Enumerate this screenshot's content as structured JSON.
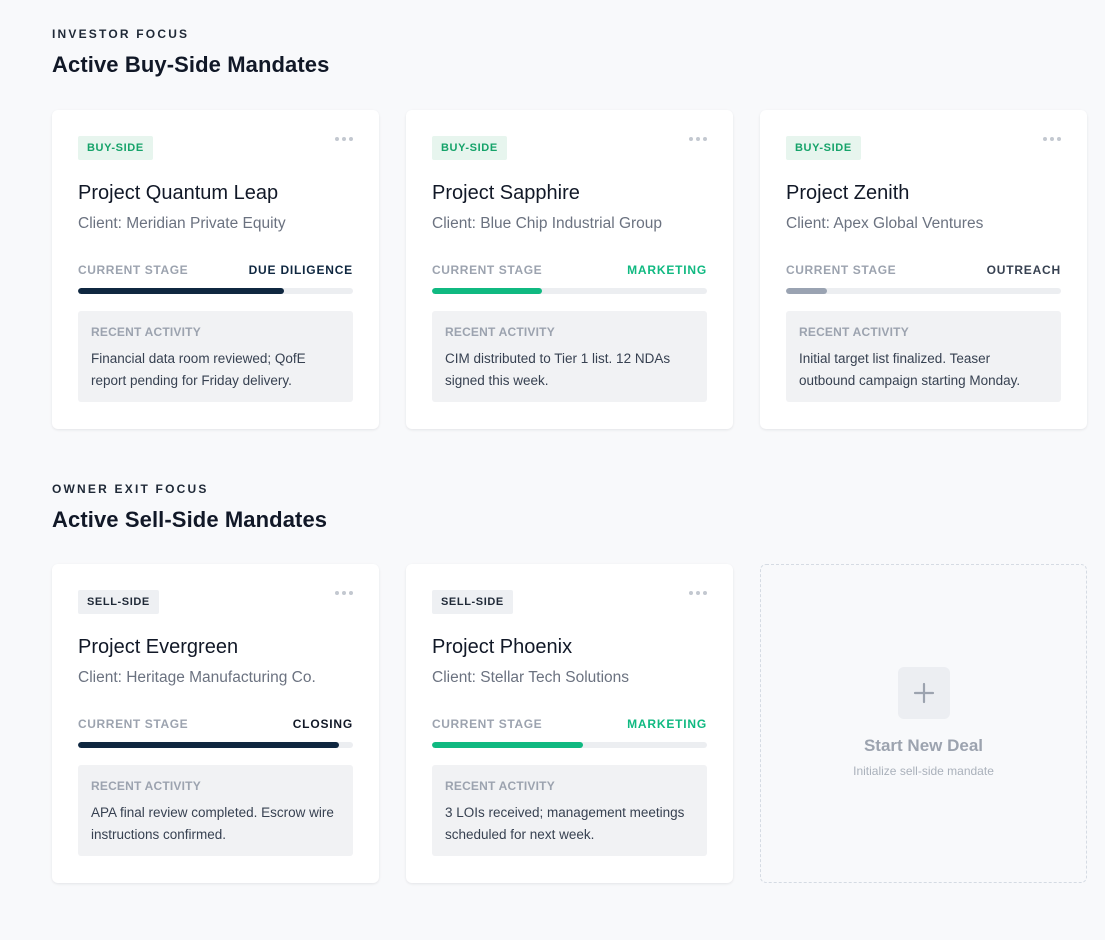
{
  "buy_section": {
    "eyebrow": "INVESTOR FOCUS",
    "title": "Active Buy-Side Mandates",
    "cards": [
      {
        "badge": "BUY-SIDE",
        "title": "Project Quantum Leap",
        "client": "Client: Meridian Private Equity",
        "stage_label": "CURRENT STAGE",
        "stage": "DUE DILIGENCE",
        "stage_color": "#0f2740",
        "progress": 0.75,
        "activity_label": "RECENT ACTIVITY",
        "activity": "Financial data room reviewed; QofE report pending for Friday delivery."
      },
      {
        "badge": "BUY-SIDE",
        "title": "Project Sapphire",
        "client": "Client: Blue Chip Industrial Group",
        "stage_label": "CURRENT STAGE",
        "stage": "MARKETING",
        "stage_color": "#10b981",
        "progress": 0.4,
        "activity_label": "RECENT ACTIVITY",
        "activity": "CIM distributed to Tier 1 list. 12 NDAs signed this week."
      },
      {
        "badge": "BUY-SIDE",
        "title": "Project Zenith",
        "client": "Client: Apex Global Ventures",
        "stage_label": "CURRENT STAGE",
        "stage": "OUTREACH",
        "stage_color": "#374151",
        "bar_color": "#9aa3b2",
        "progress": 0.15,
        "activity_label": "RECENT ACTIVITY",
        "activity": "Initial target list finalized. Teaser outbound campaign starting Monday."
      }
    ]
  },
  "sell_section": {
    "eyebrow": "OWNER EXIT FOCUS",
    "title": "Active Sell-Side Mandates",
    "cards": [
      {
        "badge": "SELL-SIDE",
        "title": "Project Evergreen",
        "client": "Client: Heritage Manufacturing Co.",
        "stage_label": "CURRENT STAGE",
        "stage": "CLOSING",
        "stage_color": "#111827",
        "bar_color": "#0f2740",
        "progress": 0.95,
        "activity_label": "RECENT ACTIVITY",
        "activity": "APA final review completed. Escrow wire instructions confirmed."
      },
      {
        "badge": "SELL-SIDE",
        "title": "Project Phoenix",
        "client": "Client: Stellar Tech Solutions",
        "stage_label": "CURRENT STAGE",
        "stage": "MARKETING",
        "stage_color": "#10b981",
        "progress": 0.55,
        "activity_label": "RECENT ACTIVITY",
        "activity": "3 LOIs received; management meetings scheduled for next week."
      }
    ],
    "new_deal": {
      "title": "Start New Deal",
      "subtitle": "Initialize sell-side mandate",
      "icon": "plus-icon"
    }
  },
  "colors": {
    "buy_badge_bg": "#e7f5ee",
    "buy_badge_text": "#16a36a",
    "sell_badge_bg": "#eef0f3",
    "navy": "#0f2740",
    "green": "#10b981"
  }
}
